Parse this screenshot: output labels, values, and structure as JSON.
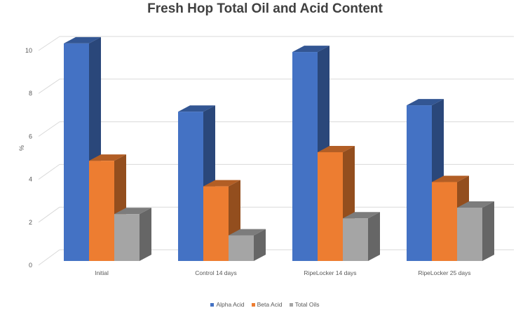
{
  "chart_data": {
    "type": "bar",
    "title": "Fresh Hop Total Oil and Acid Content",
    "xlabel": "",
    "ylabel": "%",
    "ylim": [
      0,
      10
    ],
    "yticks": [
      0,
      2,
      4,
      6,
      8,
      10
    ],
    "grid": true,
    "legend_position": "bottom",
    "style": "3D clustered column",
    "categories": [
      "Initial",
      "Control 14 days",
      "RipeLocker 14 days",
      "RipeLocker 25 days"
    ],
    "series": [
      {
        "name": "Alpha Acid",
        "color": "#4472C4",
        "values": [
          10.2,
          7.0,
          9.8,
          7.3
        ]
      },
      {
        "name": "Beta Acid",
        "color": "#ED7D31",
        "values": [
          4.7,
          3.5,
          5.1,
          3.7
        ]
      },
      {
        "name": "Total Oils",
        "color": "#A5A5A5",
        "values": [
          2.2,
          1.2,
          2.0,
          2.5
        ]
      }
    ]
  }
}
